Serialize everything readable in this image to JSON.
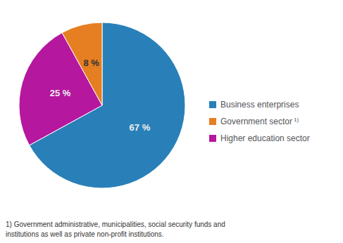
{
  "chart_data": {
    "type": "pie",
    "categories": [
      "Business enterprises",
      "Higher education sector",
      "Government sector"
    ],
    "values": [
      67,
      25,
      8
    ],
    "value_labels": [
      "67 %",
      "25 %",
      "8 %"
    ],
    "colors": [
      "#2980b9",
      "#b5179e",
      "#e67e22"
    ],
    "data_labels": true,
    "legend": "right",
    "legend_order": [
      "Business enterprises",
      "Government sector",
      "Higher education sector"
    ],
    "annotations": [
      {
        "text": "1)",
        "category": "Government sector"
      }
    ],
    "footnote": "1) Government administrative, municipalities, social security funds and\ninstitutions as well as private non-profit institutions."
  }
}
